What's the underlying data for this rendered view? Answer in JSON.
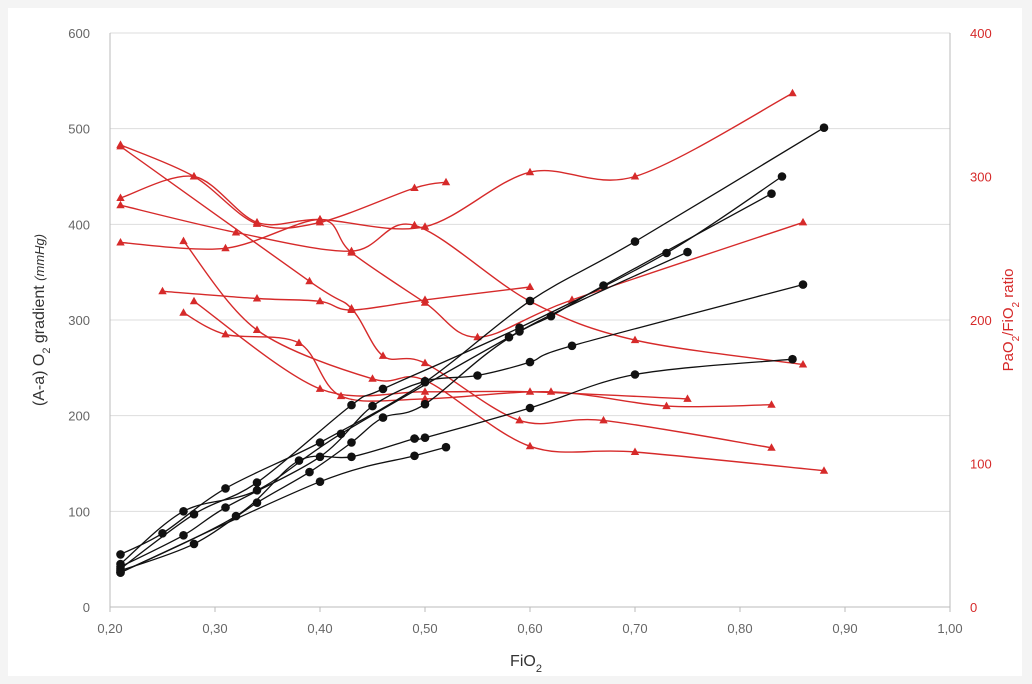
{
  "chart_data": {
    "type": "line",
    "xlabel": "FiO₂",
    "ylabel_left_main": "(A-a) O",
    "ylabel_left_sub": "2",
    "ylabel_left_rest": " gradient ",
    "ylabel_left_unit": "(mmHg)",
    "ylabel_right_main": "PaO",
    "ylabel_right_sub": "2",
    "ylabel_right_mid": "/FiO",
    "ylabel_right_sub2": "2",
    "ylabel_right_rest": " ratio",
    "xlim": [
      0.2,
      1.0
    ],
    "ylim_left": [
      0,
      600
    ],
    "ylim_right": [
      0,
      400
    ],
    "x_ticks": [
      0.2,
      0.3,
      0.4,
      0.5,
      0.6,
      0.7,
      0.8,
      0.9,
      1.0
    ],
    "x_tick_labels": [
      "0,20",
      "0,30",
      "0,40",
      "0,50",
      "0,60",
      "0,70",
      "0,80",
      "0,90",
      "1,00"
    ],
    "y_left_ticks": [
      0,
      100,
      200,
      300,
      400,
      500,
      600
    ],
    "y_left_tick_labels": [
      "0",
      "100",
      "200",
      "300",
      "400",
      "500",
      "600"
    ],
    "y_right_ticks": [
      0,
      100,
      200,
      300,
      400
    ],
    "y_right_tick_labels": [
      "0",
      "100",
      "200",
      "300",
      "400"
    ],
    "grid": true,
    "colors": {
      "gradient": "#111111",
      "ratio": "#d62a2a",
      "gridline": "#dddddd"
    },
    "gradient_series": [
      {
        "points": [
          [
            0.21,
            55
          ],
          [
            0.25,
            77
          ],
          [
            0.31,
            124
          ],
          [
            0.4,
            172
          ],
          [
            0.5,
            235
          ],
          [
            0.6,
            320
          ],
          [
            0.7,
            382
          ],
          [
            0.88,
            501
          ]
        ]
      },
      {
        "points": [
          [
            0.21,
            40
          ],
          [
            0.28,
            97
          ],
          [
            0.34,
            130
          ],
          [
            0.43,
            211
          ],
          [
            0.46,
            228
          ],
          [
            0.59,
            292
          ],
          [
            0.73,
            370
          ],
          [
            0.84,
            450
          ]
        ]
      },
      {
        "points": [
          [
            0.21,
            45
          ],
          [
            0.27,
            100
          ],
          [
            0.34,
            122
          ],
          [
            0.42,
            181
          ],
          [
            0.58,
            282
          ],
          [
            0.62,
            304
          ],
          [
            0.67,
            336
          ],
          [
            0.83,
            432
          ]
        ]
      },
      {
        "points": [
          [
            0.21,
            42
          ],
          [
            0.27,
            75
          ],
          [
            0.31,
            104
          ],
          [
            0.4,
            157
          ],
          [
            0.45,
            210
          ],
          [
            0.5,
            236
          ],
          [
            0.55,
            242
          ],
          [
            0.6,
            256
          ],
          [
            0.64,
            273
          ],
          [
            0.86,
            337
          ]
        ]
      },
      {
        "points": [
          [
            0.21,
            38
          ],
          [
            0.28,
            66
          ],
          [
            0.34,
            109
          ],
          [
            0.39,
            141
          ],
          [
            0.43,
            172
          ],
          [
            0.46,
            198
          ],
          [
            0.5,
            212
          ],
          [
            0.59,
            288
          ],
          [
            0.75,
            371
          ]
        ]
      },
      {
        "points": [
          [
            0.21,
            36
          ],
          [
            0.32,
            95
          ],
          [
            0.38,
            153
          ],
          [
            0.43,
            157
          ],
          [
            0.49,
            176
          ],
          [
            0.5,
            177
          ],
          [
            0.6,
            208
          ],
          [
            0.7,
            243
          ],
          [
            0.85,
            259
          ]
        ]
      },
      {
        "points": [
          [
            0.21,
            36
          ],
          [
            0.4,
            131
          ],
          [
            0.49,
            158
          ],
          [
            0.52,
            167
          ]
        ]
      }
    ],
    "ratio_series": [
      {
        "points": [
          [
            0.21,
            322
          ],
          [
            0.28,
            300
          ],
          [
            0.34,
            267
          ],
          [
            0.4,
            268
          ],
          [
            0.49,
            292
          ],
          [
            0.52,
            296
          ]
        ]
      },
      {
        "points": [
          [
            0.21,
            285
          ],
          [
            0.28,
            300
          ],
          [
            0.34,
            268
          ],
          [
            0.4,
            270
          ],
          [
            0.5,
            265
          ],
          [
            0.6,
            303
          ],
          [
            0.7,
            300
          ],
          [
            0.85,
            358
          ]
        ]
      },
      {
        "points": [
          [
            0.21,
            280
          ],
          [
            0.32,
            261
          ],
          [
            0.43,
            248
          ],
          [
            0.49,
            266
          ],
          [
            0.6,
            213
          ],
          [
            0.7,
            186
          ],
          [
            0.86,
            169
          ]
        ]
      },
      {
        "points": [
          [
            0.21,
            254
          ],
          [
            0.31,
            250
          ],
          [
            0.4,
            270
          ],
          [
            0.43,
            247
          ],
          [
            0.5,
            212
          ],
          [
            0.55,
            188
          ],
          [
            0.64,
            214
          ],
          [
            0.86,
            268
          ]
        ]
      },
      {
        "points": [
          [
            0.21,
            321
          ],
          [
            0.39,
            227
          ],
          [
            0.43,
            208
          ],
          [
            0.46,
            175
          ],
          [
            0.5,
            170
          ],
          [
            0.59,
            130
          ],
          [
            0.67,
            130
          ],
          [
            0.83,
            111
          ]
        ]
      },
      {
        "points": [
          [
            0.27,
            255
          ],
          [
            0.34,
            193
          ],
          [
            0.45,
            159
          ],
          [
            0.5,
            158
          ],
          [
            0.6,
            112
          ],
          [
            0.7,
            108
          ],
          [
            0.88,
            95
          ]
        ]
      },
      {
        "points": [
          [
            0.25,
            220
          ],
          [
            0.34,
            215
          ],
          [
            0.4,
            213
          ],
          [
            0.43,
            207
          ],
          [
            0.5,
            214
          ],
          [
            0.6,
            223
          ]
        ]
      },
      {
        "points": [
          [
            0.27,
            205
          ],
          [
            0.31,
            190
          ],
          [
            0.38,
            184
          ],
          [
            0.42,
            147
          ],
          [
            0.5,
            145
          ],
          [
            0.62,
            150
          ],
          [
            0.73,
            140
          ],
          [
            0.83,
            141
          ]
        ]
      },
      {
        "points": [
          [
            0.28,
            213
          ],
          [
            0.4,
            152
          ],
          [
            0.5,
            150
          ],
          [
            0.6,
            150
          ],
          [
            0.75,
            145
          ]
        ]
      }
    ]
  }
}
